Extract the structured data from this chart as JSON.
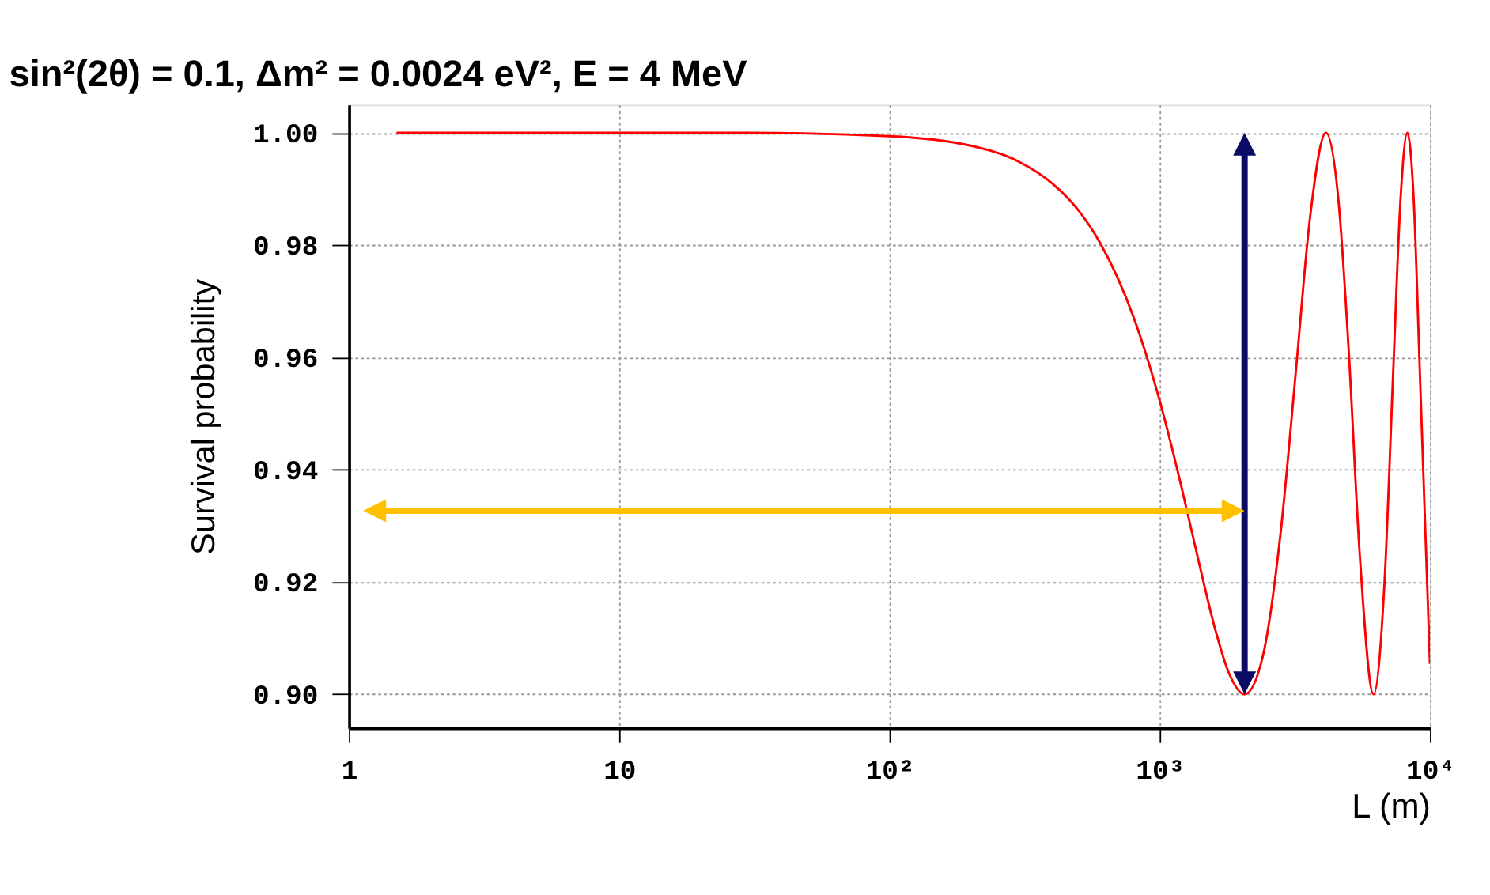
{
  "chart_data": {
    "type": "line",
    "title": "sin²(2θ) = 0.1,  Δm² = 0.0024 eV², E = 4 MeV",
    "xlabel": "L (m)",
    "ylabel": "Survival probability",
    "log": "x",
    "grid": true,
    "line_style": "solid",
    "marker": "none",
    "xlim": [
      1,
      10000
    ],
    "xticks": [
      1,
      10,
      {
        "value": 100,
        "label": "10²"
      },
      {
        "value": 1000,
        "label": "10³"
      },
      {
        "value": 10000,
        "label": "10⁴"
      }
    ],
    "ylim": [
      0.894,
      1.005
    ],
    "yticks": [
      {
        "value": 0.9,
        "label": "0.90"
      },
      {
        "value": 0.92,
        "label": "0.92"
      },
      {
        "value": 0.94,
        "label": "0.94"
      },
      {
        "value": 0.96,
        "label": "0.96"
      },
      {
        "value": 0.98,
        "label": "0.98"
      },
      {
        "value": 1.0,
        "label": "1.00"
      }
    ],
    "x": [
      1.5,
      10,
      30,
      100,
      200,
      300,
      400,
      500,
      600,
      700,
      800,
      1000,
      1200,
      1400,
      1600,
      1800,
      2061,
      2400,
      2800,
      3200,
      3600,
      4123,
      4600,
      5000,
      5500,
      6184,
      6800,
      7300,
      7800,
      8245,
      8700,
      9200,
      10000
    ],
    "series": [
      {
        "color": "#ff0000",
        "values": [
          1.0,
          1.0,
          1.0,
          0.9994,
          0.9977,
          0.9949,
          0.991,
          0.9862,
          0.9805,
          0.9741,
          0.9672,
          0.9523,
          0.9372,
          0.9233,
          0.9118,
          0.9039,
          0.9,
          0.9065,
          0.9286,
          0.9582,
          0.9849,
          1.0,
          0.9873,
          0.9616,
          0.9248,
          0.9,
          0.9205,
          0.9565,
          0.9889,
          1.0,
          0.9885,
          0.9558,
          0.9054
        ]
      }
    ]
  }
}
